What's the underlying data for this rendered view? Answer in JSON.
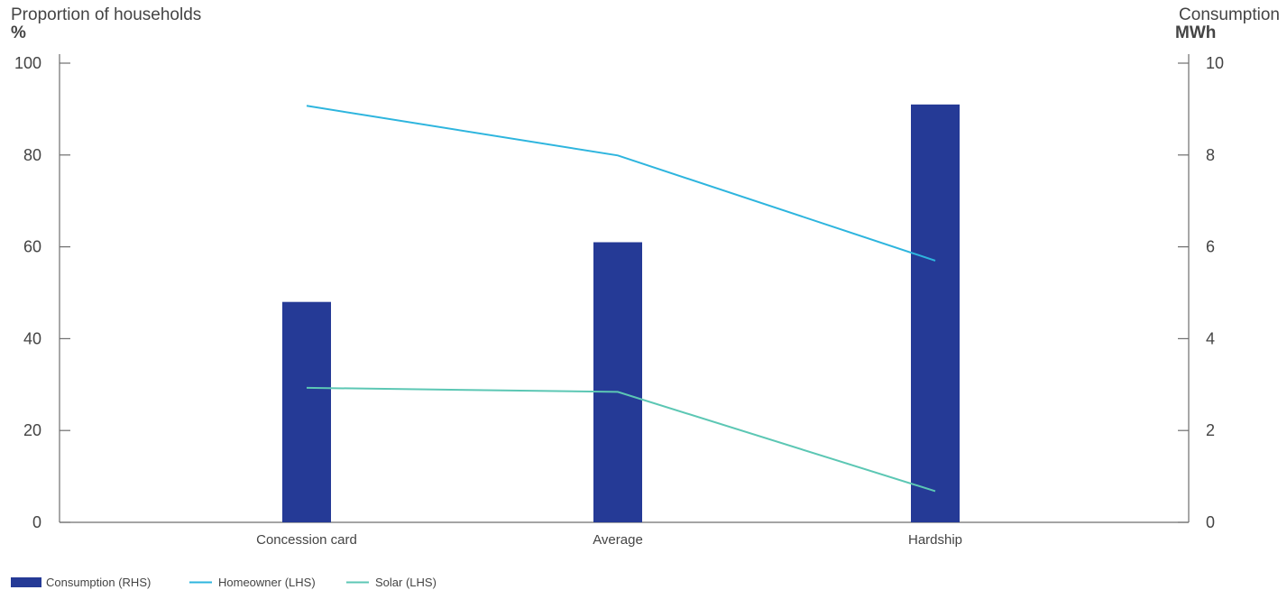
{
  "chart_data": {
    "type": "bar",
    "categories": [
      "Concession card",
      "Average",
      "Hardship"
    ],
    "left_axis": {
      "title": "Proportion of households",
      "unit": "%",
      "ylim": [
        0,
        100
      ],
      "ticks": [
        0,
        20,
        40,
        60,
        80,
        100
      ]
    },
    "right_axis": {
      "title": "Consumption",
      "unit": "MWh",
      "ylim": [
        0,
        10
      ],
      "ticks": [
        0,
        2,
        4,
        6,
        8,
        10
      ]
    },
    "series": [
      {
        "name": "Consumption (RHS)",
        "kind": "bar",
        "axis": "right",
        "color": "#253a96",
        "values": [
          4.8,
          6.1,
          9.1
        ]
      },
      {
        "name": "Homeowner (LHS)",
        "kind": "line",
        "axis": "left",
        "color": "#2eb5de",
        "values": [
          90.7,
          79.9,
          57.0
        ]
      },
      {
        "name": "Solar (LHS)",
        "kind": "line",
        "axis": "left",
        "color": "#5cc7b4",
        "values": [
          29.3,
          28.4,
          6.8
        ]
      }
    ],
    "legend_position": "bottom-left",
    "grid": false
  }
}
